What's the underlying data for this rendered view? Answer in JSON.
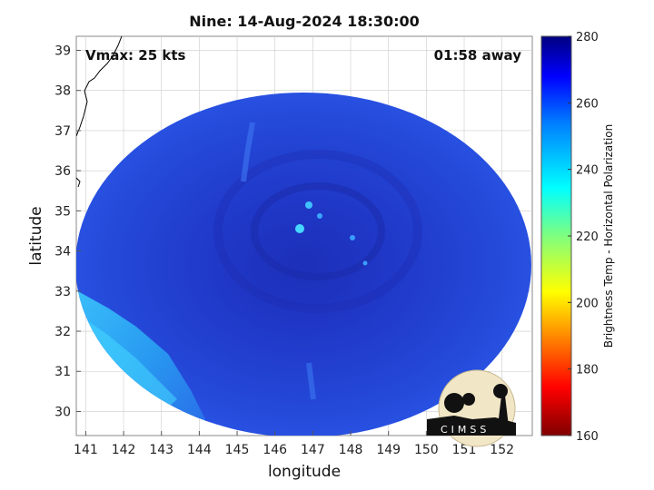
{
  "header": {
    "title": "Nine: 14-Aug-2024 18:30:00"
  },
  "annotations": {
    "vmax": "Vmax: 25 kts",
    "time_away": "01:58 away"
  },
  "axes": {
    "xlabel": "longitude",
    "ylabel": "latitude",
    "x_ticks": [
      141,
      142,
      143,
      144,
      145,
      146,
      147,
      148,
      149,
      150,
      151,
      152
    ],
    "y_ticks": [
      30,
      31,
      32,
      33,
      34,
      35,
      36,
      37,
      38,
      39
    ],
    "xlim": [
      140.75,
      152.8
    ],
    "ylim": [
      29.4,
      39.35
    ]
  },
  "colorbar": {
    "label": "Brightness Temp - Horizontal Polarization",
    "ticks": [
      160,
      180,
      200,
      220,
      240,
      260,
      280
    ],
    "range": [
      160,
      280
    ],
    "colormap": "jet"
  },
  "logo": {
    "text": "CIMSS"
  },
  "storm": {
    "center_lon": 146.9,
    "center_lat": 34.6
  },
  "colors": {
    "background_tb": "#1a3fe0",
    "warm_blue": "#2244dd",
    "cold_cyan": "#3ed8ff",
    "coast": "#000000",
    "grid": "#cccccc"
  }
}
